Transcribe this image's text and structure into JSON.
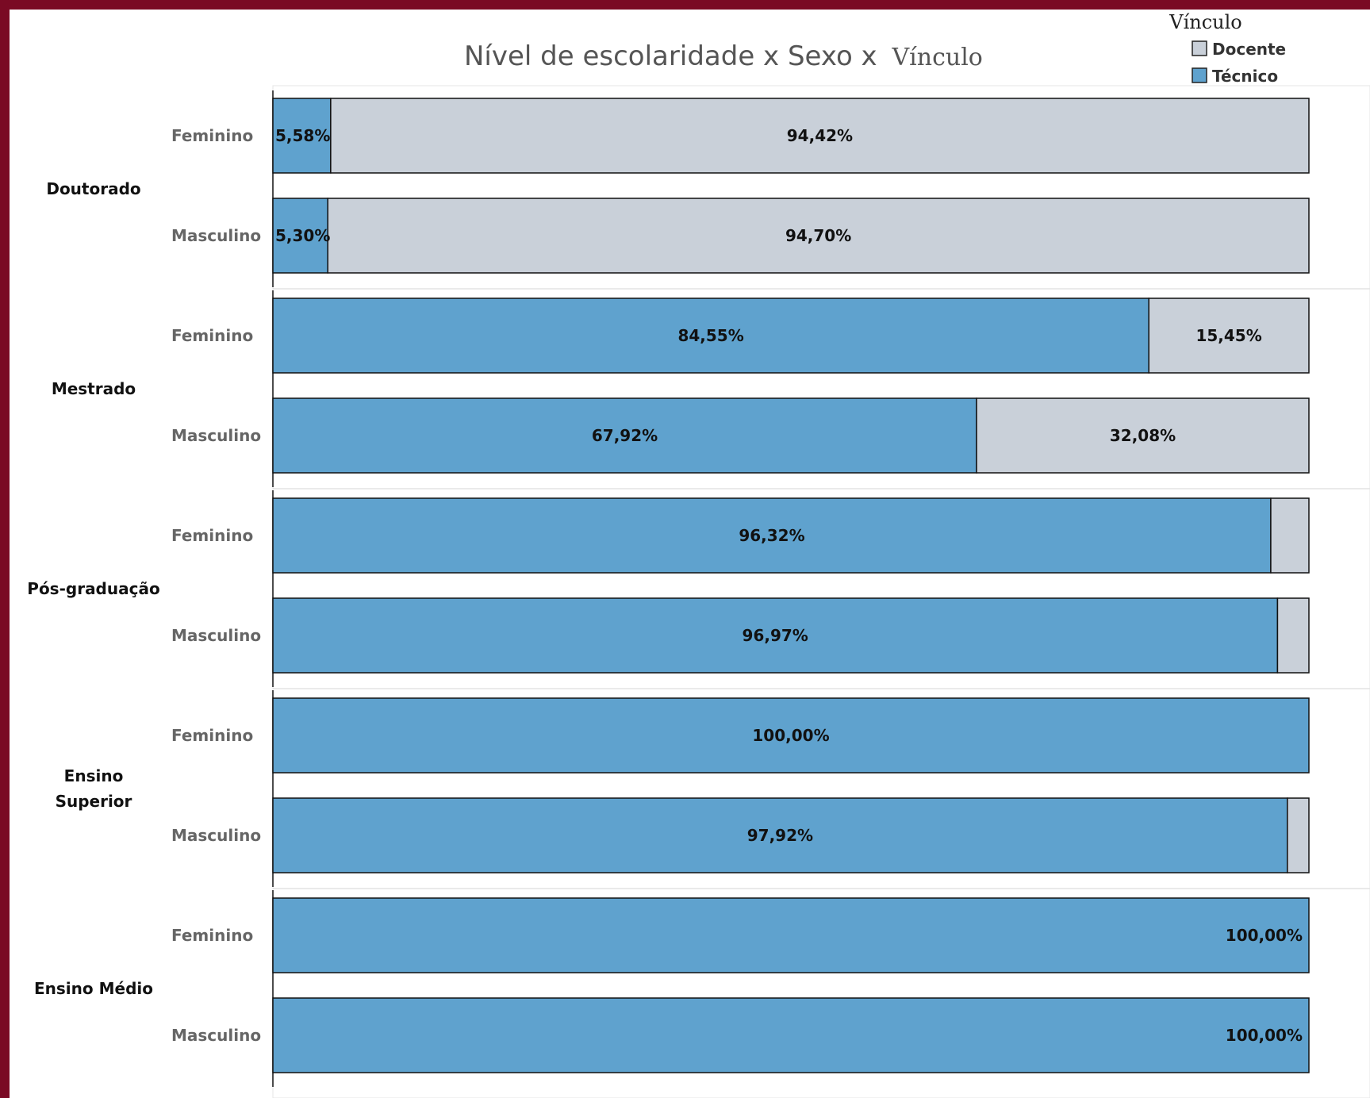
{
  "chart_data": {
    "type": "bar",
    "orientation": "horizontal-stacked-100",
    "title": "Nível de escolaridade x Sexo x",
    "title_suffix": "Vínculo",
    "legend": {
      "title": "Vínculo",
      "position": "top-right",
      "items": [
        {
          "name": "Docente",
          "color": "#c9d0d9"
        },
        {
          "name": "Técnico",
          "color": "#5fa2ce"
        }
      ]
    },
    "xlim": [
      0,
      100
    ],
    "groups": [
      {
        "label": "Doutorado",
        "rows": [
          {
            "sex": "Feminino",
            "tecnico": 5.58,
            "docente": 94.42,
            "tecnico_label": "5,58%",
            "docente_label": "94,42%"
          },
          {
            "sex": "Masculino",
            "tecnico": 5.3,
            "docente": 94.7,
            "tecnico_label": "5,30%",
            "docente_label": "94,70%"
          }
        ]
      },
      {
        "label": "Mestrado",
        "rows": [
          {
            "sex": "Feminino",
            "tecnico": 84.55,
            "docente": 15.45,
            "tecnico_label": "84,55%",
            "docente_label": "15,45%"
          },
          {
            "sex": "Masculino",
            "tecnico": 67.92,
            "docente": 32.08,
            "tecnico_label": "67,92%",
            "docente_label": "32,08%"
          }
        ]
      },
      {
        "label": "Pós-graduação",
        "rows": [
          {
            "sex": "Feminino",
            "tecnico": 96.32,
            "docente": 3.68,
            "tecnico_label": "96,32%",
            "docente_label": ""
          },
          {
            "sex": "Masculino",
            "tecnico": 96.97,
            "docente": 3.03,
            "tecnico_label": "96,97%",
            "docente_label": ""
          }
        ]
      },
      {
        "label": "Ensino Superior",
        "rows": [
          {
            "sex": "Feminino",
            "tecnico": 100.0,
            "docente": 0,
            "tecnico_label": "100,00%",
            "docente_label": ""
          },
          {
            "sex": "Masculino",
            "tecnico": 97.92,
            "docente": 2.08,
            "tecnico_label": "97,92%",
            "docente_label": ""
          }
        ]
      },
      {
        "label": "Ensino Médio",
        "rows": [
          {
            "sex": "Feminino",
            "tecnico": 100.0,
            "docente": 0,
            "tecnico_label": "100,00%",
            "docente_label": ""
          },
          {
            "sex": "Masculino",
            "tecnico": 100.0,
            "docente": 0,
            "tecnico_label": "100,00%",
            "docente_label": ""
          }
        ]
      }
    ]
  }
}
